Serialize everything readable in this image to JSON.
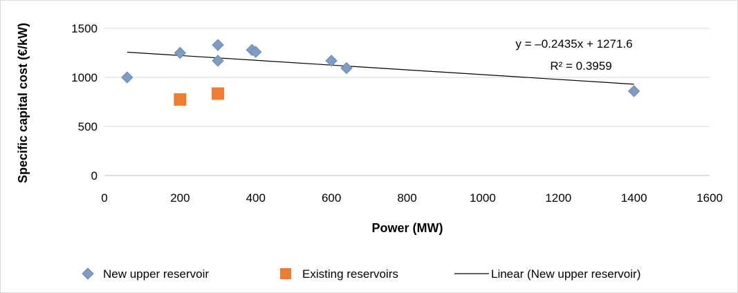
{
  "chart_data": {
    "type": "scatter",
    "title": "",
    "xlabel": "Power (MW)",
    "ylabel": "Specific capital cost (€/kW)",
    "xlim": [
      0,
      1600
    ],
    "ylim": [
      0,
      1500
    ],
    "x_ticks": [
      0,
      200,
      400,
      600,
      800,
      1000,
      1200,
      1400,
      1600
    ],
    "y_ticks": [
      0,
      500,
      1000,
      1500
    ],
    "x_tick_labels": [
      "0",
      "200",
      "400",
      "600",
      "800",
      "1000",
      "1200",
      "1400",
      "1600"
    ],
    "y_tick_labels": [
      "0",
      "500",
      "1000",
      "1500"
    ],
    "grid": "horizontal",
    "legend_position": "bottom",
    "series": [
      {
        "name": "New upper reservoir",
        "marker": "diamond",
        "color": "#7f9cc3",
        "points": [
          {
            "x": 60,
            "y": 1000
          },
          {
            "x": 200,
            "y": 1250
          },
          {
            "x": 300,
            "y": 1330
          },
          {
            "x": 300,
            "y": 1170
          },
          {
            "x": 390,
            "y": 1280
          },
          {
            "x": 400,
            "y": 1260
          },
          {
            "x": 600,
            "y": 1170
          },
          {
            "x": 640,
            "y": 1095
          },
          {
            "x": 1400,
            "y": 860
          }
        ]
      },
      {
        "name": "Existing reservoirs",
        "marker": "square",
        "color": "#ed7d31",
        "points": [
          {
            "x": 200,
            "y": 775
          },
          {
            "x": 300,
            "y": 835
          }
        ]
      }
    ],
    "trendline": {
      "name": "Linear (New upper reservoir)",
      "slope": -0.2435,
      "intercept": 1271.6,
      "x_range": [
        60,
        1400
      ],
      "color": "#000000",
      "equation_label": "y = –0.2435x + 1271.6",
      "r2_label": "R² = 0.3959"
    }
  }
}
